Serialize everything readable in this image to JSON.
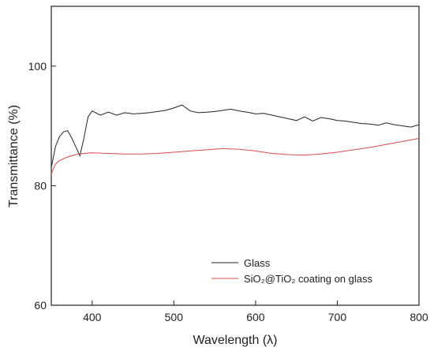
{
  "chart_data": {
    "type": "line",
    "xlabel": "Wavelength (λ)",
    "ylabel": "Transmittance (%)",
    "xlim": [
      350,
      800
    ],
    "ylim": [
      60,
      110
    ],
    "xticks": [
      400,
      500,
      600,
      700,
      800
    ],
    "yticks": [
      60,
      80,
      100
    ],
    "legend_position": "bottom-right",
    "series": [
      {
        "name": "Glass",
        "color": "#222222",
        "x": [
          350,
          355,
          360,
          365,
          370,
          375,
          380,
          385,
          390,
          395,
          400,
          410,
          420,
          430,
          440,
          450,
          460,
          470,
          480,
          490,
          500,
          510,
          520,
          530,
          540,
          550,
          560,
          570,
          580,
          590,
          600,
          610,
          620,
          630,
          640,
          650,
          660,
          670,
          680,
          690,
          700,
          710,
          720,
          730,
          740,
          750,
          760,
          770,
          780,
          790,
          800
        ],
        "y": [
          83.0,
          86.5,
          88.2,
          89.0,
          89.2,
          88.0,
          86.5,
          85.0,
          88.0,
          91.5,
          92.5,
          91.8,
          92.3,
          91.8,
          92.2,
          92.0,
          92.1,
          92.2,
          92.4,
          92.6,
          93.0,
          93.5,
          92.5,
          92.2,
          92.3,
          92.4,
          92.6,
          92.8,
          92.5,
          92.3,
          92.0,
          92.1,
          91.8,
          91.5,
          91.2,
          90.9,
          91.5,
          90.8,
          91.4,
          91.2,
          90.9,
          90.8,
          90.6,
          90.4,
          90.3,
          90.1,
          90.5,
          90.2,
          90.0,
          89.8,
          90.2
        ]
      },
      {
        "name": "SiO₂@TiO₂ coating on glass",
        "color": "#d94a4a",
        "x": [
          350,
          355,
          360,
          370,
          380,
          390,
          400,
          420,
          440,
          460,
          480,
          500,
          520,
          540,
          560,
          580,
          600,
          620,
          640,
          660,
          680,
          700,
          720,
          740,
          760,
          780,
          800
        ],
        "y": [
          82.0,
          83.6,
          84.2,
          84.8,
          85.2,
          85.4,
          85.5,
          85.4,
          85.3,
          85.3,
          85.4,
          85.6,
          85.8,
          86.0,
          86.2,
          86.1,
          85.8,
          85.4,
          85.2,
          85.1,
          85.3,
          85.6,
          86.0,
          86.4,
          86.9,
          87.4,
          87.9
        ]
      }
    ]
  }
}
